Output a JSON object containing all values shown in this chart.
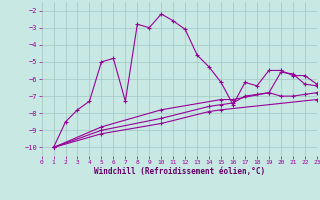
{
  "xlabel": "Windchill (Refroidissement éolien,°C)",
  "background_color": "#c8e8e4",
  "grid_color": "#a0c8c4",
  "line_color": "#990099",
  "xlim": [
    0,
    23
  ],
  "ylim": [
    -10.5,
    -1.5
  ],
  "xticks": [
    0,
    1,
    2,
    3,
    4,
    5,
    6,
    7,
    8,
    9,
    10,
    11,
    12,
    13,
    14,
    15,
    16,
    17,
    18,
    19,
    20,
    21,
    22,
    23
  ],
  "yticks": [
    -10,
    -9,
    -8,
    -7,
    -6,
    -5,
    -4,
    -3,
    -2
  ],
  "s0_x": [
    1,
    2,
    3,
    4,
    5,
    6,
    7,
    8,
    9,
    10,
    11,
    12,
    13,
    14,
    15,
    16,
    17,
    18,
    19,
    20,
    21,
    22,
    23
  ],
  "s0_y": [
    -10.0,
    -8.5,
    -7.8,
    -7.3,
    -5.0,
    -4.8,
    -7.3,
    -2.8,
    -3.0,
    -2.2,
    -2.6,
    -3.1,
    -4.6,
    -5.3,
    -6.2,
    -7.5,
    -6.2,
    -6.4,
    -5.5,
    -5.5,
    -5.8,
    -5.8,
    -6.3
  ],
  "s1_x": [
    1,
    5,
    10,
    15,
    16,
    19,
    20,
    21,
    22,
    23
  ],
  "s1_y": [
    -10.0,
    -8.8,
    -7.8,
    -7.2,
    -7.2,
    -6.8,
    -5.6,
    -5.7,
    -6.3,
    -6.4
  ],
  "s2_x": [
    1,
    5,
    10,
    14,
    15,
    16,
    17,
    18,
    19,
    20,
    21,
    22,
    23
  ],
  "s2_y": [
    -10.0,
    -9.0,
    -8.3,
    -7.6,
    -7.5,
    -7.4,
    -7.0,
    -6.9,
    -6.8,
    -7.0,
    -7.0,
    -6.9,
    -6.8
  ],
  "s3_x": [
    1,
    5,
    10,
    14,
    15,
    23
  ],
  "s3_y": [
    -10.0,
    -9.2,
    -8.6,
    -7.9,
    -7.8,
    -7.2
  ]
}
